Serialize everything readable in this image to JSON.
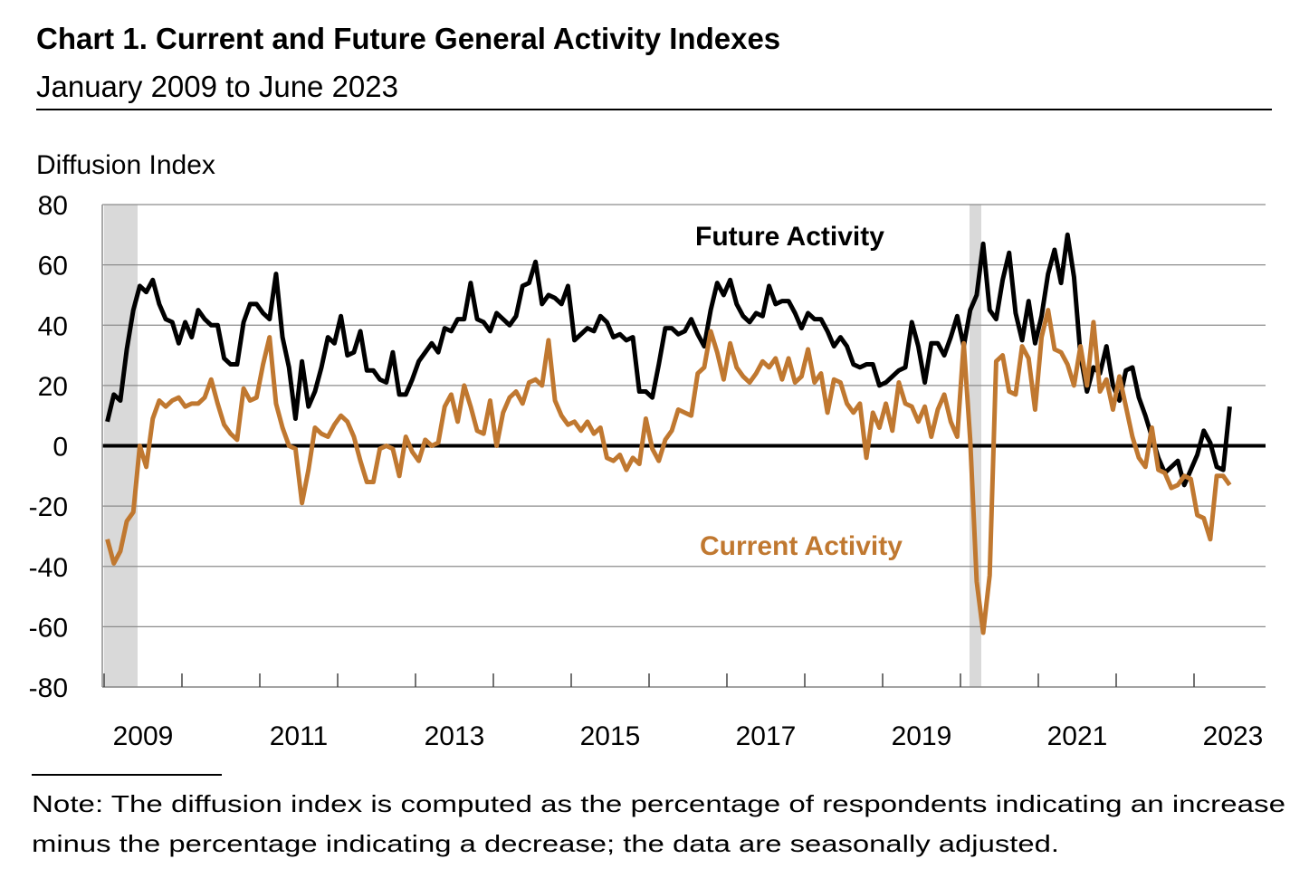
{
  "chart_data": {
    "type": "line",
    "title": "Chart 1. Current and Future General Activity Indexes",
    "subtitle": "January 2009 to June 2023",
    "y_label": "Diffusion Index",
    "note": [
      "Note: The diffusion index is computed as the percentage of respondents indicating an increase",
      "minus the percentage indicating a decrease; the data are seasonally adjusted."
    ],
    "categories": [
      null,
      null,
      null,
      null,
      null,
      "2009",
      null,
      null,
      null,
      null,
      null,
      null,
      null,
      null,
      null,
      null,
      null,
      null,
      null,
      null,
      null,
      null,
      null,
      null,
      null,
      null,
      null,
      null,
      null,
      "2011",
      null,
      null,
      null,
      null,
      null,
      null,
      null,
      null,
      null,
      null,
      null,
      null,
      null,
      null,
      null,
      null,
      null,
      null,
      null,
      null,
      null,
      null,
      null,
      "2013",
      null,
      null,
      null,
      null,
      null,
      null,
      null,
      null,
      null,
      null,
      null,
      null,
      null,
      null,
      null,
      null,
      null,
      null,
      null,
      null,
      null,
      null,
      null,
      "2015",
      null,
      null,
      null,
      null,
      null,
      null,
      null,
      null,
      null,
      null,
      null,
      null,
      null,
      null,
      null,
      null,
      null,
      null,
      null,
      null,
      null,
      null,
      null,
      "2017",
      null,
      null,
      null,
      null,
      null,
      null,
      null,
      null,
      null,
      null,
      null,
      null,
      null,
      null,
      null,
      null,
      null,
      null,
      null,
      null,
      null,
      null,
      null,
      "2019",
      null,
      null,
      null,
      null,
      null,
      null,
      null,
      null,
      null,
      null,
      null,
      null,
      null,
      null,
      null,
      null,
      null,
      null,
      null,
      null,
      null,
      null,
      null,
      "2021",
      null,
      null,
      null,
      null,
      null,
      null,
      null,
      null,
      null,
      null,
      null,
      null,
      null,
      null,
      null,
      null,
      null,
      null,
      null,
      null,
      null,
      null,
      null,
      "2023"
    ],
    "series": [
      {
        "name": "Future Activity",
        "color": "#000000",
        "values": [
          8,
          17,
          15,
          32,
          45,
          53,
          51,
          55,
          47,
          42,
          41,
          34,
          41,
          36,
          45,
          42,
          40,
          40,
          29,
          27,
          27,
          41,
          47,
          47,
          44,
          42,
          57,
          36,
          26,
          9,
          28,
          13,
          18,
          26,
          36,
          34,
          43,
          30,
          31,
          38,
          25,
          25,
          22,
          21,
          31,
          17,
          17,
          22,
          28,
          31,
          34,
          31,
          39,
          38,
          42,
          42,
          54,
          42,
          41,
          38,
          44,
          42,
          40,
          43,
          53,
          54,
          61,
          47,
          50,
          49,
          47,
          53,
          35,
          37,
          39,
          38,
          43,
          41,
          36,
          37,
          35,
          36,
          18,
          18,
          16,
          27,
          39,
          39,
          37,
          38,
          42,
          37,
          33,
          45,
          54,
          50,
          55,
          47,
          43,
          41,
          44,
          43,
          53,
          47,
          48,
          48,
          44,
          39,
          44,
          42,
          42,
          38,
          33,
          36,
          33,
          27,
          26,
          27,
          27,
          20,
          21,
          23,
          25,
          26,
          41,
          33,
          21,
          34,
          34,
          30,
          36,
          43,
          33,
          45,
          50,
          67,
          45,
          42,
          55,
          64,
          44,
          35,
          48,
          34,
          43,
          57,
          65,
          54,
          70,
          56,
          30,
          18,
          26,
          24,
          33,
          20,
          15,
          25,
          26,
          16,
          10,
          3,
          -4,
          -9,
          -7,
          -5,
          -13,
          -8,
          -3,
          5,
          1,
          -7,
          -8,
          13
        ]
      },
      {
        "name": "Current Activity",
        "color": "#c07830",
        "values": [
          -31,
          -39,
          -35,
          -25,
          -22,
          0,
          -7,
          9,
          15,
          13,
          15,
          16,
          13,
          14,
          14,
          16,
          22,
          14,
          7,
          4,
          2,
          19,
          15,
          16,
          27,
          36,
          14,
          6,
          0,
          -1,
          -19,
          -8,
          6,
          4,
          3,
          7,
          10,
          8,
          3,
          -5,
          -12,
          -12,
          -1,
          0,
          -1,
          -10,
          3,
          -2,
          -5,
          2,
          0,
          1,
          13,
          17,
          8,
          20,
          13,
          5,
          4,
          15,
          0,
          11,
          16,
          18,
          14,
          21,
          22,
          20,
          35,
          15,
          10,
          7,
          8,
          5,
          8,
          4,
          6,
          -4,
          -5,
          -3,
          -8,
          -4,
          -6,
          9,
          -1,
          -5,
          2,
          5,
          12,
          11,
          10,
          24,
          26,
          38,
          31,
          22,
          34,
          26,
          23,
          21,
          24,
          28,
          26,
          29,
          22,
          29,
          21,
          23,
          32,
          21,
          24,
          11,
          22,
          21,
          14,
          11,
          14,
          -4,
          11,
          6,
          14,
          5,
          21,
          14,
          13,
          8,
          13,
          3,
          12,
          17,
          8,
          3,
          34,
          2,
          -45,
          -62,
          -43,
          28,
          30,
          18,
          17,
          33,
          29,
          12,
          36,
          45,
          32,
          31,
          27,
          20,
          33,
          20,
          41,
          18,
          22,
          12,
          23,
          13,
          3,
          -4,
          -7,
          6,
          -8,
          -9,
          -14,
          -13,
          -10,
          -11,
          -23,
          -24,
          -31,
          -10,
          -10,
          -13
        ]
      }
    ],
    "ylim": [
      -80,
      80
    ],
    "yticks": [
      -80,
      -60,
      -40,
      -20,
      0,
      20,
      40,
      60,
      80
    ],
    "grid": true
  }
}
